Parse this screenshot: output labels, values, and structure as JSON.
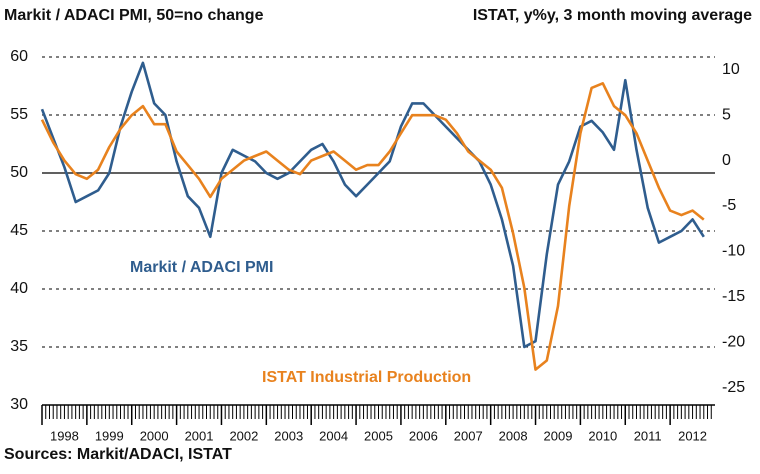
{
  "chart_data": {
    "type": "line",
    "title": "Markit / ADACI PMI, 50=no change",
    "y2_title": "ISTAT, y%y, 3 month moving average",
    "source": "Sources: Markit/ADACI, ISTAT",
    "annotations": [
      "Markit / ADACI PMI",
      "ISTAT Industrial Production"
    ],
    "x": [
      1998,
      1998.25,
      1998.5,
      1998.75,
      1999,
      1999.25,
      1999.5,
      1999.75,
      2000,
      2000.25,
      2000.5,
      2000.75,
      2001,
      2001.25,
      2001.5,
      2001.75,
      2002,
      2002.25,
      2002.5,
      2002.75,
      2003,
      2003.25,
      2003.5,
      2003.75,
      2004,
      2004.25,
      2004.5,
      2004.75,
      2005,
      2005.25,
      2005.5,
      2005.75,
      2006,
      2006.25,
      2006.5,
      2006.75,
      2007,
      2007.25,
      2007.5,
      2007.75,
      2008,
      2008.25,
      2008.5,
      2008.75,
      2009,
      2009.25,
      2009.5,
      2009.75,
      2010,
      2010.25,
      2010.5,
      2010.75,
      2011,
      2011.25,
      2011.5,
      2011.75,
      2012,
      2012.25,
      2012.5,
      2012.75
    ],
    "series": [
      {
        "name": "Markit / ADACI PMI",
        "color": "#2f5d8e",
        "axis": "y",
        "values": [
          55.5,
          53,
          50.5,
          47.5,
          48,
          48.5,
          50,
          54,
          57,
          59.5,
          56,
          55,
          51,
          48,
          47,
          44.5,
          50,
          52,
          51.5,
          51,
          50,
          49.5,
          50,
          51,
          52,
          52.5,
          51,
          49,
          48,
          49,
          50,
          51,
          54,
          56,
          56,
          55,
          54,
          53,
          52,
          51,
          49,
          46,
          42,
          35,
          35.5,
          43,
          49,
          51,
          54,
          54.5,
          53.5,
          52,
          58,
          52,
          47,
          44,
          44.5,
          45,
          46,
          44.5
        ]
      },
      {
        "name": "ISTAT Industrial Production",
        "color": "#e8821e",
        "axis": "y2",
        "values": [
          4.5,
          2,
          0,
          -1.5,
          -2,
          -1,
          1.5,
          3.5,
          5,
          6,
          4,
          4,
          1,
          -0.5,
          -2,
          -4,
          -2,
          -1,
          0,
          0.5,
          1,
          0,
          -1,
          -1.5,
          0,
          0.5,
          1,
          0,
          -1,
          -0.5,
          -0.5,
          1,
          3,
          5,
          5,
          5,
          4.5,
          3,
          1,
          0,
          -1,
          -3,
          -8,
          -14,
          -23,
          -22,
          -16,
          -5,
          3,
          8,
          8.5,
          6,
          5,
          3,
          0,
          -3,
          -5.5,
          -6,
          -5.5,
          -6.5
        ]
      }
    ],
    "xlim": [
      1998,
      2013
    ],
    "xticks": [
      1998,
      1999,
      2000,
      2001,
      2002,
      2003,
      2004,
      2005,
      2006,
      2007,
      2008,
      2009,
      2010,
      2011,
      2012
    ],
    "ylim": [
      30,
      60
    ],
    "yticks": [
      30,
      35,
      40,
      45,
      50,
      55,
      60
    ],
    "y2lim": [
      -26.9,
      11.4
    ],
    "y2ticks": [
      -25,
      -20,
      -15,
      -10,
      -5,
      0,
      5,
      10
    ],
    "reference_line": 50,
    "grid": true
  }
}
